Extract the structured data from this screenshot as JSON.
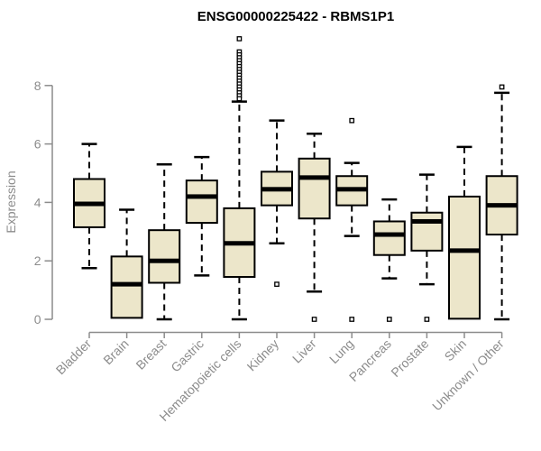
{
  "title": "ENSG00000225422 - RBMS1P1",
  "colors": {
    "background": "#ffffff",
    "box_fill": "#ece6ca",
    "box_border": "#000000",
    "median": "#000000",
    "whisker": "#000000",
    "outlier_fill": "#ffffff",
    "axis": "#8c8c8c",
    "tick_label": "#8c8c8c",
    "title": "#000000"
  },
  "chart_data": {
    "type": "boxplot",
    "title": "ENSG00000225422 - RBMS1P1",
    "xlabel": "",
    "ylabel": "Expression",
    "ylim": [
      0,
      8
    ],
    "yticks": [
      0,
      2,
      4,
      6,
      8
    ],
    "grid": false,
    "legend": false,
    "categories": [
      "Bladder",
      "Brain",
      "Breast",
      "Gastric",
      "Hematopoietic cells",
      "Kidney",
      "Liver",
      "Lung",
      "Pancreas",
      "Prostate",
      "Skin",
      "Unknown / Other"
    ],
    "series": [
      {
        "name": "Bladder",
        "low": 1.75,
        "q1": 3.15,
        "median": 3.95,
        "q3": 4.8,
        "high": 6.0,
        "outliers": []
      },
      {
        "name": "Brain",
        "low": 0,
        "q1": 0.05,
        "median": 1.2,
        "q3": 2.15,
        "high": 3.75,
        "outliers": []
      },
      {
        "name": "Breast",
        "low": 0,
        "q1": 1.25,
        "median": 2.0,
        "q3": 3.05,
        "high": 5.3,
        "outliers": []
      },
      {
        "name": "Gastric",
        "low": 1.5,
        "q1": 3.3,
        "median": 4.2,
        "q3": 4.75,
        "high": 5.55,
        "outliers": []
      },
      {
        "name": "Hematopoietic cells",
        "low": 0,
        "q1": 1.45,
        "median": 2.6,
        "q3": 3.8,
        "high": 7.45,
        "outliers": [
          9.6,
          9.15,
          9.05,
          8.95,
          8.85,
          8.75,
          8.65,
          8.55,
          8.45,
          8.35,
          8.25,
          8.15,
          8.05,
          7.95,
          7.85,
          7.75,
          7.65,
          7.55
        ]
      },
      {
        "name": "Kidney",
        "low": 2.6,
        "q1": 3.9,
        "median": 4.45,
        "q3": 5.05,
        "high": 6.8,
        "outliers": [
          1.2
        ]
      },
      {
        "name": "Liver",
        "low": 0.95,
        "q1": 3.45,
        "median": 4.85,
        "q3": 5.5,
        "high": 6.35,
        "outliers": [
          0
        ]
      },
      {
        "name": "Lung",
        "low": 2.85,
        "q1": 3.9,
        "median": 4.45,
        "q3": 4.9,
        "high": 5.35,
        "outliers": [
          6.8,
          0
        ]
      },
      {
        "name": "Pancreas",
        "low": 1.4,
        "q1": 2.2,
        "median": 2.9,
        "q3": 3.35,
        "high": 4.1,
        "outliers": [
          0
        ]
      },
      {
        "name": "Prostate",
        "low": 1.2,
        "q1": 2.35,
        "median": 3.35,
        "q3": 3.65,
        "high": 4.95,
        "outliers": [
          0
        ]
      },
      {
        "name": "Skin",
        "low": 0,
        "q1": 0.02,
        "median": 2.35,
        "q3": 4.2,
        "high": 5.9,
        "outliers": []
      },
      {
        "name": "Unknown / Other",
        "low": 0,
        "q1": 2.9,
        "median": 3.9,
        "q3": 4.9,
        "high": 7.75,
        "outliers": [
          7.95
        ]
      }
    ]
  }
}
